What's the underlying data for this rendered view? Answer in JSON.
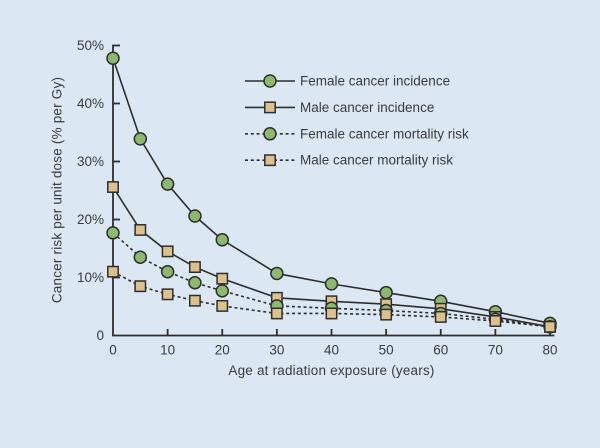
{
  "chart_data": {
    "type": "line",
    "title": "",
    "xlabel": "Age at radiation exposure (years)",
    "ylabel": "Cancer risk per unit dose (% per Gy)",
    "x": [
      0,
      5,
      10,
      15,
      20,
      30,
      40,
      50,
      60,
      70,
      80
    ],
    "xlim": [
      0,
      80
    ],
    "ylim": [
      0,
      50
    ],
    "x_ticks": [
      0,
      10,
      20,
      30,
      40,
      50,
      60,
      70,
      80
    ],
    "y_ticks": [
      0,
      10,
      20,
      30,
      40,
      50
    ],
    "y_tick_labels": [
      "0",
      "10%",
      "20%",
      "30%",
      "40%",
      "50%"
    ],
    "grid": false,
    "legend_position": "upper-right-inside",
    "series": [
      {
        "name": "Female cancer incidence",
        "marker": "circle",
        "marker_color": "#8db96f",
        "line_style": "solid",
        "values": [
          47.8,
          33.9,
          26.1,
          20.6,
          16.5,
          10.7,
          8.9,
          7.4,
          5.9,
          4.1,
          2.1
        ]
      },
      {
        "name": "Male cancer incidence",
        "marker": "square",
        "marker_color": "#ddc08b",
        "line_style": "solid",
        "values": [
          25.6,
          18.2,
          14.5,
          11.8,
          9.8,
          6.5,
          5.9,
          5.4,
          4.6,
          3.2,
          1.5
        ]
      },
      {
        "name": "Female cancer mortality risk",
        "marker": "circle",
        "marker_color": "#8db96f",
        "line_style": "dashed",
        "values": [
          17.7,
          13.5,
          11.0,
          9.1,
          7.7,
          5.1,
          4.7,
          4.3,
          3.8,
          2.8,
          1.5
        ]
      },
      {
        "name": "Male cancer mortality risk",
        "marker": "square",
        "marker_color": "#ddc08b",
        "line_style": "dashed",
        "values": [
          11.0,
          8.5,
          7.1,
          6.0,
          5.1,
          3.8,
          3.8,
          3.6,
          3.2,
          2.5,
          1.5
        ]
      }
    ],
    "colors": {
      "background": "#dbe7f3",
      "line": "#2e2e2e",
      "text": "#3b3b3b"
    }
  }
}
